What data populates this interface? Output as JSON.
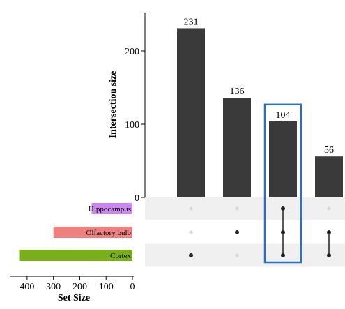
{
  "chart_data": {
    "type": "bar",
    "subtype": "upset",
    "ylabel": "Intersection size",
    "xlabel_sets": "Set Size",
    "ylim": [
      0,
      250
    ],
    "yticks": [
      0,
      100,
      200
    ],
    "set_size_ticks": [
      400,
      300,
      200,
      100,
      0
    ],
    "set_size_max": 450,
    "sets": [
      {
        "name": "Hippocampus",
        "size": 155,
        "color": "#cc88f0"
      },
      {
        "name": "Olfactory bulb",
        "size": 300,
        "color": "#f08080"
      },
      {
        "name": "Cortex",
        "size": 430,
        "color": "#7aae1a"
      }
    ],
    "intersections": [
      {
        "value": 231,
        "members": [
          false,
          false,
          true
        ]
      },
      {
        "value": 136,
        "members": [
          false,
          true,
          false
        ]
      },
      {
        "value": 104,
        "members": [
          true,
          true,
          true
        ],
        "highlighted": true
      },
      {
        "value": 56,
        "members": [
          false,
          true,
          true
        ]
      }
    ],
    "colors": {
      "bar": "#3a3a3a",
      "highlight_box": "#2a6fc0",
      "dot_active": "#222222",
      "dot_inactive": "#d8d8d8",
      "stripe": "#f0f0f0"
    }
  }
}
